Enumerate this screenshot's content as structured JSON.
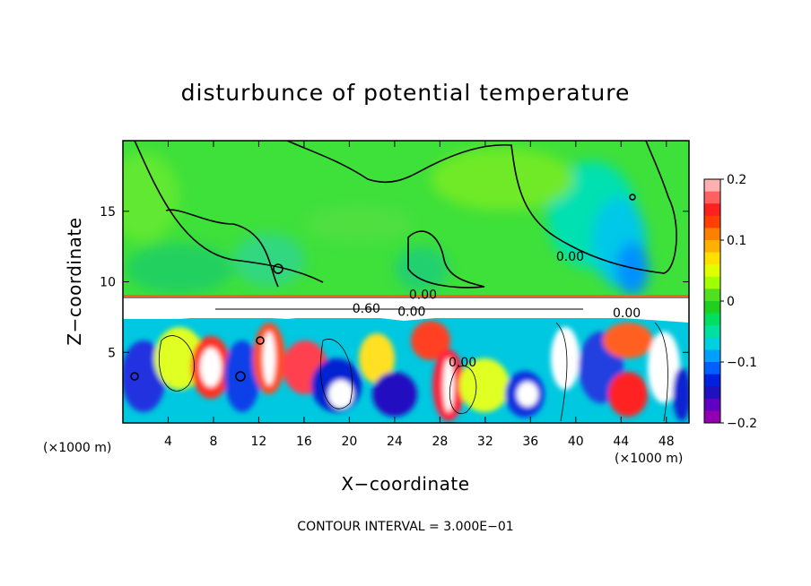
{
  "chart_data": {
    "type": "heatmap",
    "title": "disturbunce of potential temperature",
    "xlabel": "X−coordinate",
    "ylabel": "Z−coordinate",
    "x_unit": "(×1000 m)",
    "x_unit_right": "(×1000 m)",
    "footer": "CONTOUR INTERVAL = 3.000E−01",
    "xlim": [
      0,
      50
    ],
    "ylim": [
      0,
      20
    ],
    "x_ticks": [
      4,
      8,
      12,
      16,
      20,
      24,
      28,
      32,
      36,
      40,
      44,
      48
    ],
    "y_ticks": [
      5,
      10,
      15
    ],
    "colorbar": {
      "min": -0.2,
      "max": 0.2,
      "ticks": [
        "0.2",
        "0.1",
        "0",
        "−0.1",
        "−0.2"
      ],
      "tick_values": [
        0.2,
        0.1,
        0,
        -0.1,
        -0.2
      ],
      "colors": [
        "#ffb0b0",
        "#ff6060",
        "#ff2020",
        "#ff4000",
        "#ff8000",
        "#ffb000",
        "#ffe000",
        "#e0ff00",
        "#a0ff00",
        "#50e020",
        "#20d020",
        "#00e060",
        "#00e0a0",
        "#00d0e0",
        "#00a0ff",
        "#0060ff",
        "#0020e0",
        "#2010c0",
        "#6000c0",
        "#9000b0"
      ]
    },
    "band_top_z": 9.1,
    "band_bottom_z": 7.8,
    "contour_labels": [
      {
        "text": "0.00",
        "x": 39.5,
        "z": 11.5
      },
      {
        "text": "0.00",
        "x": 26.5,
        "z": 8.8
      },
      {
        "text": "0.60",
        "x": 21.5,
        "z": 7.8
      },
      {
        "text": "0.00",
        "x": 25.5,
        "z": 7.6
      },
      {
        "text": "0.00",
        "x": 44.5,
        "z": 7.5
      },
      {
        "text": "0.00",
        "x": 30.0,
        "z": 4.0
      }
    ]
  }
}
